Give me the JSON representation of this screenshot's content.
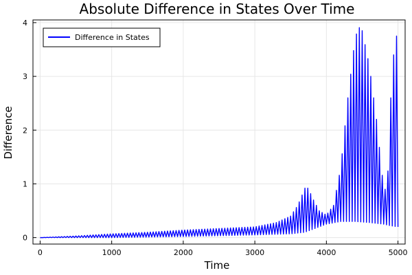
{
  "chart_data": {
    "type": "line",
    "title": "Absolute Difference in States Over Time",
    "xlabel": "Time",
    "ylabel": "Difference",
    "xlim": [
      -100,
      5100
    ],
    "ylim": [
      -0.12,
      4.05
    ],
    "xticks": [
      0,
      1000,
      2000,
      3000,
      4000,
      5000
    ],
    "yticks": [
      0,
      1,
      2,
      3,
      4
    ],
    "grid": true,
    "legend_position": "top-left",
    "series": [
      {
        "name": "Difference in States",
        "color": "#0000ff",
        "oscillation_period": 40,
        "envelope_lower": [
          [
            0,
            0.0
          ],
          [
            1000,
            0.0
          ],
          [
            2000,
            0.02
          ],
          [
            3000,
            0.05
          ],
          [
            3500,
            0.07
          ],
          [
            3700,
            0.1
          ],
          [
            3900,
            0.2
          ],
          [
            4000,
            0.25
          ],
          [
            4200,
            0.3
          ],
          [
            4400,
            0.3
          ],
          [
            4600,
            0.28
          ],
          [
            4800,
            0.25
          ],
          [
            4900,
            0.22
          ],
          [
            5000,
            0.2
          ]
        ],
        "envelope_upper": [
          [
            0,
            0.0
          ],
          [
            500,
            0.03
          ],
          [
            1000,
            0.07
          ],
          [
            1500,
            0.1
          ],
          [
            2000,
            0.14
          ],
          [
            2500,
            0.17
          ],
          [
            3000,
            0.2
          ],
          [
            3300,
            0.28
          ],
          [
            3500,
            0.4
          ],
          [
            3600,
            0.6
          ],
          [
            3700,
            0.92
          ],
          [
            3750,
            0.92
          ],
          [
            3800,
            0.75
          ],
          [
            3900,
            0.5
          ],
          [
            4000,
            0.42
          ],
          [
            4100,
            0.6
          ],
          [
            4200,
            1.3
          ],
          [
            4300,
            2.6
          ],
          [
            4400,
            3.7
          ],
          [
            4450,
            3.92
          ],
          [
            4500,
            3.85
          ],
          [
            4600,
            3.2
          ],
          [
            4700,
            2.2
          ],
          [
            4800,
            0.9
          ],
          [
            4850,
            0.9
          ],
          [
            4900,
            2.6
          ],
          [
            4950,
            3.6
          ],
          [
            5000,
            3.85
          ]
        ]
      }
    ]
  }
}
